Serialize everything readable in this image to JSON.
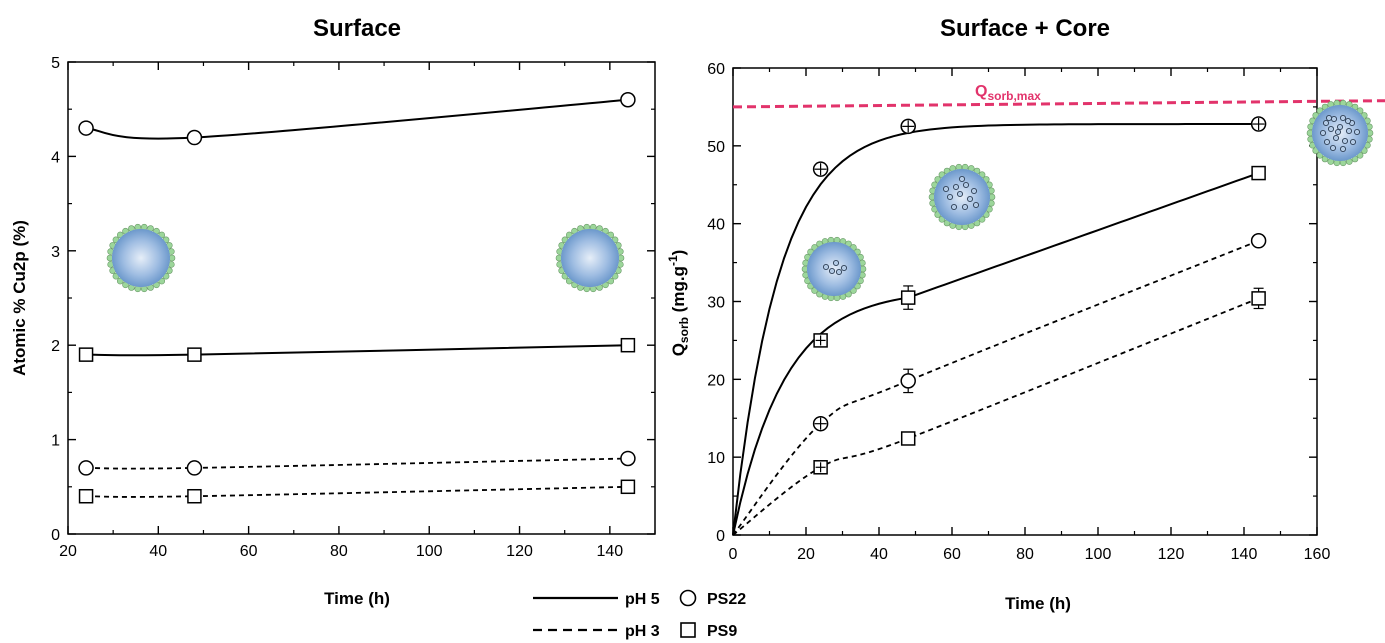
{
  "chart_data": [
    {
      "type": "line",
      "title": "Surface",
      "xlabel": "Time (h)",
      "ylabel": "Atomic % Cu2p (%)",
      "xlim": [
        20,
        150
      ],
      "ylim": [
        0,
        5
      ],
      "xticks": [
        "20",
        "40",
        "60",
        "80",
        "100",
        "120",
        "140"
      ],
      "yticks": [
        "0",
        "1",
        "2",
        "3",
        "4",
        "5"
      ],
      "series": [
        {
          "line": "solid",
          "marker": "circle",
          "x": [
            24,
            48,
            144
          ],
          "y": [
            4.3,
            4.2,
            4.6
          ]
        },
        {
          "line": "solid",
          "marker": "square",
          "x": [
            24,
            48,
            144
          ],
          "y": [
            1.9,
            1.9,
            2.0
          ]
        },
        {
          "line": "dashed",
          "marker": "circle",
          "x": [
            24,
            48,
            144
          ],
          "y": [
            0.7,
            0.7,
            0.8
          ]
        },
        {
          "line": "dashed",
          "marker": "square",
          "x": [
            24,
            48,
            144
          ],
          "y": [
            0.4,
            0.4,
            0.5
          ]
        }
      ]
    },
    {
      "type": "line",
      "title": "Surface + Core",
      "xlabel": "Time (h)",
      "ylabel_main": "Q",
      "ylabel_sub": "sorb",
      "ylabel_rest": " (mg.g",
      "ylabel_sup": "-1",
      "ylabel_end": ")",
      "xlim": [
        0,
        160
      ],
      "ylim": [
        0,
        60
      ],
      "xticks": [
        "0",
        "20",
        "40",
        "60",
        "80",
        "100",
        "120",
        "140",
        "160"
      ],
      "yticks": [
        "0",
        "10",
        "20",
        "30",
        "40",
        "50",
        "60"
      ],
      "qmax_main": "Q",
      "qmax_sub": "sorb,max",
      "qmax_y": [
        55,
        55.8
      ],
      "qmax_color": "#e2336b",
      "series": [
        {
          "line": "solid",
          "marker": "circle-plus",
          "x": [
            0,
            24,
            48,
            144
          ],
          "y": [
            0,
            47,
            52.5,
            52.8
          ]
        },
        {
          "line": "solid",
          "marker": "square",
          "x": [
            0,
            24,
            48,
            144
          ],
          "y": [
            0,
            25,
            30.5,
            46.5
          ],
          "yerr": [
            0,
            0,
            1.5,
            0
          ]
        },
        {
          "line": "dashed",
          "marker": "circle",
          "x": [
            0,
            24,
            48,
            144
          ],
          "y": [
            0,
            14.3,
            19.8,
            37.8
          ],
          "yerr": [
            0,
            0,
            1.5,
            0
          ]
        },
        {
          "line": "dashed",
          "marker": "square",
          "x": [
            0,
            24,
            48,
            144
          ],
          "y": [
            0,
            8.7,
            12.4,
            30.4
          ],
          "yerr": [
            0,
            0,
            0,
            1.3
          ]
        }
      ]
    }
  ],
  "legend": {
    "lines": [
      {
        "style": "solid",
        "label": "pH 5"
      },
      {
        "style": "dashed",
        "label": "pH 3"
      }
    ],
    "markers": [
      {
        "marker": "circle",
        "label": "PS22"
      },
      {
        "marker": "square",
        "label": "PS9"
      }
    ]
  },
  "colors": {
    "sphere_fill": "#7fa8d6",
    "bead": "#9cd69a",
    "marker_stroke": "#000000"
  }
}
